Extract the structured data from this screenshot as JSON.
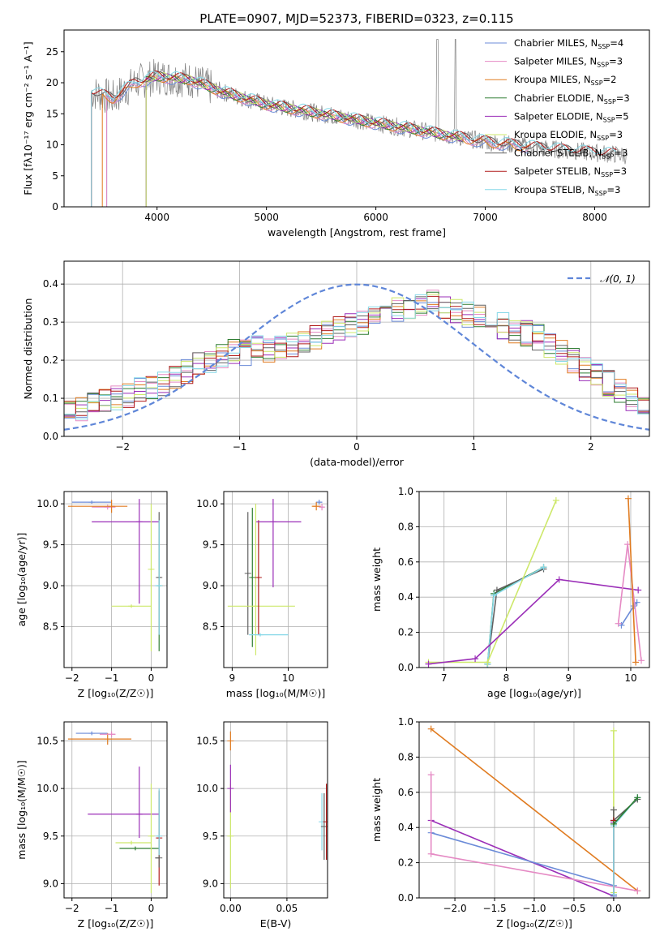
{
  "title": "PLATE=0907, MJD=52373, FIBERID=0323, z=0.115",
  "colors": {
    "chabrier_miles": "#6b8bd8",
    "salpeter_miles": "#e58ac4",
    "kroupa_miles": "#e07b20",
    "chabrier_elodie": "#2e7d32",
    "salpeter_elodie": "#9b2fb8",
    "kroupa_elodie": "#cde86a",
    "chabrier_stelib": "#606060",
    "salpeter_stelib": "#b01c1c",
    "kroupa_stelib": "#86d8e8",
    "data": "#808080",
    "gauss": "#5f86d8"
  },
  "chart_data": [
    {
      "id": "spectrum",
      "type": "line",
      "xlabel": "wavelength [Angstrom, rest frame]",
      "ylabel": "Flux [fλ10⁻¹⁷ erg cm⁻² s⁻¹ A⁻¹]",
      "xlim": [
        3150,
        8500
      ],
      "ylim": [
        0,
        28.5
      ],
      "xticks": [
        4000,
        5000,
        6000,
        7000,
        8000
      ],
      "yticks": [
        0,
        5,
        10,
        15,
        20,
        25
      ],
      "legend_position": "top-right",
      "legend": [
        {
          "main": "Chabrier MILES, N",
          "sub": "SSP",
          "tail": "=4",
          "color_key": "chabrier_miles"
        },
        {
          "main": "Salpeter MILES, N",
          "sub": "SSP",
          "tail": "=3",
          "color_key": "salpeter_miles"
        },
        {
          "main": "Kroupa MILES, N",
          "sub": "SSP",
          "tail": "=2",
          "color_key": "kroupa_miles"
        },
        {
          "main": "Chabrier ELODIE, N",
          "sub": "SSP",
          "tail": "=3",
          "color_key": "chabrier_elodie"
        },
        {
          "main": "Salpeter ELODIE, N",
          "sub": "SSP",
          "tail": "=5",
          "color_key": "salpeter_elodie"
        },
        {
          "main": "Kroupa ELODIE, N",
          "sub": "SSP",
          "tail": "=3",
          "color_key": "kroupa_elodie"
        },
        {
          "main": "Chabrier STELIB, N",
          "sub": "SSP",
          "tail": "=3",
          "color_key": "chabrier_stelib"
        },
        {
          "main": "Salpeter STELIB, N",
          "sub": "SSP",
          "tail": "=3",
          "color_key": "salpeter_stelib"
        },
        {
          "main": "Kroupa STELIB, N",
          "sub": "SSP",
          "tail": "=3",
          "color_key": "kroupa_stelib"
        }
      ],
      "continuum": [
        [
          3400,
          18.5
        ],
        [
          3600,
          17.5
        ],
        [
          3800,
          20
        ],
        [
          4000,
          21
        ],
        [
          4300,
          20.5
        ],
        [
          4600,
          18.5
        ],
        [
          5000,
          16.5
        ],
        [
          5500,
          15
        ],
        [
          6000,
          13.5
        ],
        [
          6500,
          12
        ],
        [
          7000,
          10.5
        ],
        [
          7500,
          9.5
        ],
        [
          8000,
          8.7
        ],
        [
          8300,
          8.3
        ]
      ],
      "models": [
        {
          "color_key": "chabrier_miles",
          "range": [
            3540,
            7400
          ]
        },
        {
          "color_key": "salpeter_miles",
          "range": [
            3540,
            7400
          ]
        },
        {
          "color_key": "kroupa_miles",
          "range": [
            3500,
            7420
          ]
        },
        {
          "color_key": "chabrier_elodie",
          "range": [
            3900,
            6800
          ]
        },
        {
          "color_key": "salpeter_elodie",
          "range": [
            3900,
            6800
          ]
        },
        {
          "color_key": "kroupa_elodie",
          "range": [
            3900,
            6800
          ]
        },
        {
          "color_key": "chabrier_stelib",
          "range": [
            3400,
            8200
          ]
        },
        {
          "color_key": "salpeter_stelib",
          "range": [
            3400,
            8200
          ]
        },
        {
          "color_key": "kroupa_stelib",
          "range": [
            3400,
            8200
          ]
        }
      ]
    },
    {
      "id": "residuals",
      "type": "histogram",
      "xlabel": "(data-model)/error",
      "ylabel": "Normed distribution",
      "xlim": [
        -2.5,
        2.5
      ],
      "ylim": [
        0,
        0.46
      ],
      "xticks": [
        -2,
        -1,
        0,
        1,
        2
      ],
      "yticks": [
        0.0,
        0.1,
        0.2,
        0.3,
        0.4
      ],
      "legend_position": "top-right",
      "legend_label": "𝒩(0, 1)",
      "bin_width": 0.1,
      "gaussian": {
        "mean": 0,
        "sigma": 1
      },
      "base_profile": [
        0.06,
        0.07,
        0.08,
        0.09,
        0.1,
        0.11,
        0.12,
        0.13,
        0.14,
        0.16,
        0.17,
        0.19,
        0.2,
        0.21,
        0.22,
        0.22,
        0.23,
        0.23,
        0.23,
        0.24,
        0.25,
        0.26,
        0.27,
        0.28,
        0.29,
        0.3,
        0.31,
        0.32,
        0.33,
        0.34,
        0.35,
        0.35,
        0.34,
        0.33,
        0.32,
        0.31,
        0.3,
        0.29,
        0.28,
        0.27,
        0.26,
        0.24,
        0.22,
        0.2,
        0.18,
        0.16,
        0.14,
        0.12,
        0.1,
        0.08
      ]
    },
    {
      "id": "age_vs_Z",
      "type": "errorbar",
      "xlabel": "Z [log₁₀(Z/Z☉)]",
      "ylabel": "age  [log₁₀(age/yr)]",
      "xlim": [
        -2.2,
        0.4
      ],
      "ylim": [
        8.0,
        10.15
      ],
      "xticks": [
        -2,
        -1,
        0
      ],
      "yticks": [
        8.5,
        9.0,
        9.5,
        10.0
      ],
      "points": [
        {
          "color_key": "chabrier_miles",
          "x": -1.5,
          "xerr": [
            0.5,
            0.5
          ],
          "y": 10.02,
          "yerr": [
            0.02,
            0.02
          ]
        },
        {
          "color_key": "salpeter_miles",
          "x": -1.1,
          "xerr": [
            0.4,
            0.2
          ],
          "y": 9.96,
          "yerr": [
            0.03,
            0.03
          ]
        },
        {
          "color_key": "kroupa_miles",
          "x": -1.0,
          "xerr": [
            1.1,
            0.4
          ],
          "y": 9.97,
          "yerr": [
            0.08,
            0.08
          ]
        },
        {
          "color_key": "salpeter_elodie",
          "x": -0.3,
          "xerr": [
            1.2,
            0.5
          ],
          "y": 9.78,
          "yerr": [
            1.0,
            0.28
          ]
        },
        {
          "color_key": "kroupa_elodie",
          "x": -0.5,
          "xerr": [
            0.5,
            0.5
          ],
          "y": 8.75,
          "yerr": [
            0.02,
            0.02
          ]
        },
        {
          "color_key": "chabrier_elodie",
          "x": 0.2,
          "xerr": [
            0.05,
            0.05
          ],
          "y": 9.0,
          "yerr": [
            0.8,
            0.8
          ]
        },
        {
          "color_key": "chabrier_stelib",
          "x": 0.2,
          "xerr": [
            0.05,
            0.05
          ],
          "y": 9.1,
          "yerr": [
            0.7,
            0.8
          ]
        },
        {
          "color_key": "kroupa_stelib",
          "x": 0.2,
          "xerr": [
            0.1,
            0.05
          ],
          "y": 9.0,
          "yerr": [
            0.6,
            0.8
          ]
        },
        {
          "color_key": "kroupa_elodie",
          "x": 0.0,
          "xerr": [
            0.02,
            0.02
          ],
          "y": 9.2,
          "yerr": [
            1.0,
            0.8
          ]
        }
      ]
    },
    {
      "id": "age_vs_mass",
      "type": "errorbar",
      "xlabel": "mass [log₁₀(M/M☉)]",
      "ylabel": "",
      "xlim": [
        8.85,
        10.7
      ],
      "ylim": [
        8.0,
        10.15
      ],
      "xticks": [
        9,
        10
      ],
      "yticks": [
        8.5,
        9.0,
        9.5,
        10.0
      ],
      "points": [
        {
          "color_key": "chabrier_stelib",
          "x": 9.28,
          "xerr": [
            0.02,
            0.0
          ],
          "y": 9.15,
          "yerr": [
            0.75,
            0.75
          ]
        },
        {
          "color_key": "chabrier_elodie",
          "x": 9.36,
          "xerr": [
            0.02,
            0.0
          ],
          "y": 9.1,
          "yerr": [
            0.85,
            0.85
          ]
        },
        {
          "color_key": "kroupa_elodie",
          "x": 9.42,
          "xerr": [
            0.5,
            0.7
          ],
          "y": 8.75,
          "yerr": [
            0.6,
            1.25
          ]
        },
        {
          "color_key": "salpeter_stelib",
          "x": 9.47,
          "xerr": [
            0.02,
            0.0
          ],
          "y": 9.1,
          "yerr": [
            0.7,
            0.7
          ]
        },
        {
          "color_key": "kroupa_stelib",
          "x": 9.5,
          "xerr": [
            0.2,
            0.5
          ],
          "y": 8.4,
          "yerr": [
            0.02,
            0.02
          ]
        },
        {
          "color_key": "salpeter_elodie",
          "x": 9.73,
          "xerr": [
            0.3,
            0.5
          ],
          "y": 9.78,
          "yerr": [
            0.8,
            0.28
          ]
        },
        {
          "color_key": "chabrier_miles",
          "x": 10.55,
          "xerr": [
            0.05,
            0.05
          ],
          "y": 10.02,
          "yerr": [
            0.03,
            0.03
          ]
        },
        {
          "color_key": "kroupa_miles",
          "x": 10.5,
          "xerr": [
            0.08,
            0.08
          ],
          "y": 9.97,
          "yerr": [
            0.05,
            0.05
          ]
        },
        {
          "color_key": "salpeter_miles",
          "x": 10.6,
          "xerr": [
            0.04,
            0.04
          ],
          "y": 9.96,
          "yerr": [
            0.04,
            0.04
          ]
        }
      ]
    },
    {
      "id": "weight_vs_age",
      "type": "line",
      "xlabel": "age  [log₁₀(age/yr)]",
      "ylabel": "mass weight",
      "xlim": [
        6.6,
        10.3
      ],
      "ylim": [
        0,
        1.0
      ],
      "xticks": [
        7,
        8,
        9,
        10
      ],
      "yticks": [
        0.0,
        0.2,
        0.4,
        0.6,
        0.8,
        1.0
      ],
      "series": [
        {
          "color_key": "chabrier_elodie",
          "x": [
            7.7,
            7.8,
            8.6
          ],
          "y": [
            0.02,
            0.42,
            0.57
          ]
        },
        {
          "color_key": "chabrier_stelib",
          "x": [
            7.7,
            7.85,
            8.6
          ],
          "y": [
            0.02,
            0.44,
            0.56
          ]
        },
        {
          "color_key": "kroupa_stelib",
          "x": [
            7.7,
            7.8,
            8.6
          ],
          "y": [
            0.02,
            0.41,
            0.57
          ]
        },
        {
          "color_key": "kroupa_elodie",
          "x": [
            6.75,
            7.7,
            8.8
          ],
          "y": [
            0.03,
            0.03,
            0.95
          ]
        },
        {
          "color_key": "salpeter_elodie",
          "x": [
            6.75,
            7.5,
            8.85,
            10.12
          ],
          "y": [
            0.02,
            0.05,
            0.5,
            0.44
          ]
        },
        {
          "color_key": "chabrier_miles",
          "x": [
            9.85,
            10.05,
            10.1
          ],
          "y": [
            0.24,
            0.35,
            0.37
          ]
        },
        {
          "color_key": "salpeter_miles",
          "x": [
            9.8,
            9.95,
            10.17
          ],
          "y": [
            0.25,
            0.7,
            0.04
          ]
        },
        {
          "color_key": "kroupa_miles",
          "x": [
            9.96,
            10.08
          ],
          "y": [
            0.96,
            0.03
          ]
        }
      ]
    },
    {
      "id": "mass_vs_Z",
      "type": "errorbar",
      "xlabel": "Z [log₁₀(Z/Z☉)]",
      "ylabel": "mass [log₁₀(M/M☉)]",
      "xlim": [
        -2.2,
        0.4
      ],
      "ylim": [
        8.85,
        10.7
      ],
      "xticks": [
        -2,
        -1,
        0
      ],
      "yticks": [
        9.0,
        9.5,
        10.0,
        10.5
      ],
      "points": [
        {
          "color_key": "chabrier_miles",
          "x": -1.5,
          "xerr": [
            0.4,
            0.4
          ],
          "y": 10.58,
          "yerr": [
            0.02,
            0.02
          ]
        },
        {
          "color_key": "kroupa_miles",
          "x": -1.1,
          "xerr": [
            1.0,
            0.6
          ],
          "y": 10.52,
          "yerr": [
            0.06,
            0.06
          ]
        },
        {
          "color_key": "salpeter_miles",
          "x": -1.0,
          "xerr": [
            0.3,
            0.1
          ],
          "y": 10.57,
          "yerr": [
            0.03,
            0.03
          ]
        },
        {
          "color_key": "salpeter_elodie",
          "x": -0.3,
          "xerr": [
            1.3,
            0.5
          ],
          "y": 9.73,
          "yerr": [
            0.25,
            0.5
          ]
        },
        {
          "color_key": "kroupa_elodie",
          "x": -0.5,
          "xerr": [
            0.4,
            0.5
          ],
          "y": 9.43,
          "yerr": [
            0.02,
            0.02
          ]
        },
        {
          "color_key": "chabrier_elodie",
          "x": -0.4,
          "xerr": [
            0.4,
            0.6
          ],
          "y": 9.37,
          "yerr": [
            0.02,
            0.02
          ]
        },
        {
          "color_key": "salpeter_stelib",
          "x": 0.2,
          "xerr": [
            0.05,
            0.0
          ],
          "y": 9.48,
          "yerr": [
            0.5,
            0.5
          ]
        },
        {
          "color_key": "chabrier_stelib",
          "x": 0.2,
          "xerr": [
            0.1,
            0.0
          ],
          "y": 9.27,
          "yerr": [
            0.1,
            0.7
          ]
        },
        {
          "color_key": "kroupa_stelib",
          "x": 0.2,
          "xerr": [
            0.05,
            0.0
          ],
          "y": 9.5,
          "yerr": [
            0.2,
            0.5
          ]
        },
        {
          "color_key": "kroupa_elodie",
          "x": 0.0,
          "xerr": [
            0.02,
            0.02
          ],
          "y": 9.5,
          "yerr": [
            0.6,
            0.55
          ]
        }
      ]
    },
    {
      "id": "mass_vs_ebv",
      "type": "errorbar",
      "xlabel": "E(B-V)",
      "ylabel": "",
      "xlim": [
        -0.006,
        0.086
      ],
      "ylim": [
        8.85,
        10.7
      ],
      "xticks": [
        0.0,
        0.05
      ],
      "xticklabels": [
        "0.00",
        "0.05"
      ],
      "yticks": [
        9.0,
        9.5,
        10.0,
        10.5
      ],
      "points": [
        {
          "color_key": "kroupa_elodie",
          "x": 0.0,
          "xerr": [
            0,
            0
          ],
          "y": 9.5,
          "yerr": [
            0.55,
            0.55
          ]
        },
        {
          "color_key": "salpeter_elodie",
          "x": 0.0,
          "xerr": [
            0,
            0
          ],
          "y": 10.0,
          "yerr": [
            0.25,
            0.25
          ]
        },
        {
          "color_key": "kroupa_miles",
          "x": 0.0,
          "xerr": [
            0,
            0
          ],
          "y": 10.5,
          "yerr": [
            0.1,
            0.1
          ]
        },
        {
          "color_key": "kroupa_stelib",
          "x": 0.081,
          "xerr": [
            0,
            0
          ],
          "y": 9.65,
          "yerr": [
            0.3,
            0.3
          ]
        },
        {
          "color_key": "chabrier_stelib",
          "x": 0.083,
          "xerr": [
            0,
            0
          ],
          "y": 9.6,
          "yerr": [
            0.35,
            0.35
          ]
        },
        {
          "color_key": "salpeter_stelib",
          "x": 0.085,
          "xerr": [
            0,
            0
          ],
          "y": 9.65,
          "yerr": [
            0.4,
            0.4
          ]
        }
      ]
    },
    {
      "id": "weight_vs_Z",
      "type": "line",
      "xlabel": "Z [log₁₀(Z/Z☉)]",
      "ylabel": "mass weight",
      "xlim": [
        -2.45,
        0.45
      ],
      "ylim": [
        0,
        1.0
      ],
      "xticks": [
        -2.0,
        -1.5,
        -1.0,
        -0.5,
        0.0
      ],
      "xticklabels": [
        "−2.0",
        "−1.5",
        "−1.0",
        "−0.5",
        "0.0"
      ],
      "yticks": [
        0.0,
        0.2,
        0.4,
        0.6,
        0.8,
        1.0
      ],
      "series": [
        {
          "color_key": "kroupa_miles",
          "x": [
            -2.3,
            0.3
          ],
          "y": [
            0.96,
            0.04
          ]
        },
        {
          "color_key": "salpeter_elodie",
          "x": [
            -2.3,
            0.0,
            0.0
          ],
          "y": [
            0.44,
            0.01,
            0.43
          ]
        },
        {
          "color_key": "chabrier_miles",
          "x": [
            -2.3,
            0.0,
            0.0
          ],
          "y": [
            0.37,
            0.07,
            0.01
          ]
        },
        {
          "color_key": "salpeter_miles",
          "x": [
            -2.3,
            -2.3,
            0.3
          ],
          "y": [
            0.7,
            0.25,
            0.04
          ]
        },
        {
          "color_key": "kroupa_elodie",
          "x": [
            0.0,
            0.0
          ],
          "y": [
            0.03,
            0.95
          ]
        },
        {
          "color_key": "chabrier_stelib",
          "x": [
            0.0,
            0.0,
            0.3
          ],
          "y": [
            0.5,
            0.44,
            0.56
          ]
        },
        {
          "color_key": "salpeter_stelib",
          "x": [
            0.0,
            0.0
          ],
          "y": [
            0.02,
            0.44
          ]
        },
        {
          "color_key": "kroupa_stelib",
          "x": [
            0.0,
            0.0,
            0.3
          ],
          "y": [
            0.02,
            0.41,
            0.57
          ]
        },
        {
          "color_key": "chabrier_elodie",
          "x": [
            0.0,
            0.3
          ],
          "y": [
            0.42,
            0.57
          ]
        }
      ]
    }
  ]
}
